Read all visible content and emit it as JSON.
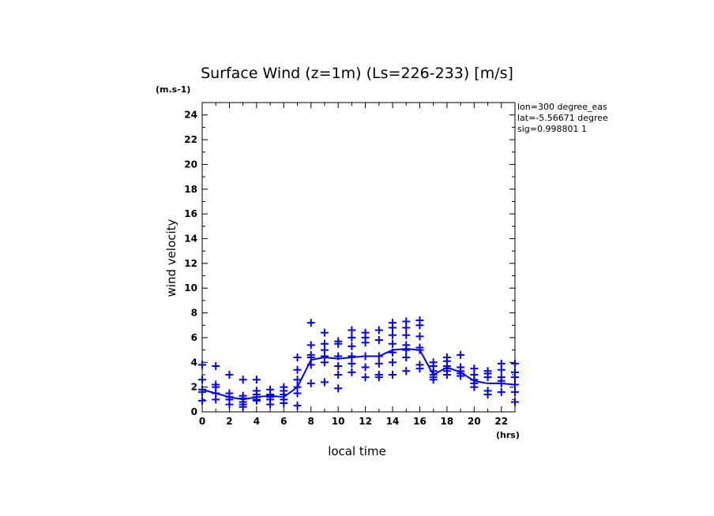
{
  "chart_data": {
    "type": "scatter",
    "title": "Surface Wind (z=1m) (Ls=226-233) [m/s]",
    "ylabel": "wind velocity",
    "yunit": "(m.s-1)",
    "xlabel": "local time",
    "xunit": "(hrs)",
    "xlim": [
      0,
      23
    ],
    "ylim": [
      0,
      25
    ],
    "xticks": [
      0,
      2,
      4,
      6,
      8,
      10,
      12,
      14,
      16,
      18,
      20,
      22
    ],
    "yticks": [
      0,
      2,
      4,
      6,
      8,
      10,
      12,
      14,
      16,
      18,
      20,
      22,
      24
    ],
    "info": [
      "lon=300 degree_eas",
      "lat=-5.56671 degree",
      "sig=0.998801 1"
    ],
    "color": "#0000ff",
    "mean_line": {
      "x": [
        0,
        1,
        2,
        3,
        4,
        5,
        6,
        7,
        8,
        9,
        10,
        11,
        12,
        13,
        14,
        15,
        16,
        17,
        18,
        19,
        20,
        21,
        22,
        23
      ],
      "y": [
        1.8,
        1.5,
        1.2,
        1.0,
        1.2,
        1.3,
        1.2,
        2.0,
        4.2,
        4.4,
        4.3,
        4.4,
        4.5,
        4.5,
        5.0,
        5.1,
        5.0,
        3.0,
        3.6,
        3.2,
        2.5,
        2.3,
        2.3,
        2.2
      ]
    },
    "points": {
      "x": [
        0,
        0,
        0,
        0,
        0,
        1,
        1,
        1,
        1,
        1,
        2,
        2,
        2,
        2,
        2,
        3,
        3,
        3,
        3,
        3,
        3,
        4,
        4,
        4,
        4,
        4,
        4,
        5,
        5,
        5,
        5,
        5,
        6,
        6,
        6,
        6,
        6,
        7,
        7,
        7,
        7,
        7,
        7,
        8,
        8,
        8,
        8,
        8,
        8,
        9,
        9,
        9,
        9,
        9,
        9,
        10,
        10,
        10,
        10,
        10,
        10,
        11,
        11,
        11,
        11,
        11,
        11,
        12,
        12,
        12,
        12,
        12,
        12,
        13,
        13,
        13,
        13,
        13,
        13,
        14,
        14,
        14,
        14,
        14,
        14,
        14,
        15,
        15,
        15,
        15,
        15,
        15,
        15,
        16,
        16,
        16,
        16,
        16,
        16,
        16,
        17,
        17,
        17,
        17,
        17,
        17,
        18,
        18,
        18,
        18,
        18,
        18,
        19,
        19,
        19,
        19,
        19,
        20,
        20,
        20,
        20,
        20,
        21,
        21,
        21,
        21,
        21,
        22,
        22,
        22,
        22,
        22,
        22,
        23,
        23,
        23,
        23,
        23,
        23
      ],
      "y": [
        3.8,
        2.6,
        1.8,
        1.6,
        0.9,
        3.7,
        2.2,
        2.0,
        1.5,
        1.0,
        3.0,
        1.5,
        1.2,
        1.0,
        0.6,
        2.6,
        1.3,
        1.1,
        0.8,
        0.6,
        0.4,
        2.6,
        1.7,
        1.4,
        1.2,
        1.0,
        0.9,
        1.8,
        1.4,
        1.2,
        1.0,
        0.6,
        2.0,
        1.7,
        1.4,
        1.0,
        0.7,
        4.4,
        3.4,
        2.6,
        2.0,
        1.5,
        0.5,
        7.2,
        5.4,
        4.6,
        4.4,
        3.8,
        2.3,
        6.4,
        5.5,
        5.0,
        4.5,
        4.0,
        2.4,
        5.7,
        5.5,
        4.5,
        3.7,
        3.0,
        1.9,
        6.6,
        6.0,
        5.3,
        4.5,
        3.9,
        3.2,
        6.4,
        6.0,
        5.6,
        4.5,
        3.6,
        2.8,
        6.6,
        5.8,
        4.5,
        3.9,
        3.0,
        2.8,
        7.2,
        6.8,
        6.2,
        5.5,
        4.8,
        4.0,
        3.0,
        7.3,
        6.8,
        6.2,
        5.4,
        5.0,
        4.4,
        3.3,
        7.4,
        7.0,
        6.1,
        5.2,
        5.0,
        3.8,
        3.5,
        4.0,
        3.7,
        3.3,
        3.0,
        2.8,
        2.6,
        4.4,
        4.1,
        3.7,
        3.5,
        3.3,
        3.0,
        4.6,
        3.6,
        3.3,
        3.1,
        2.9,
        3.5,
        3.0,
        2.6,
        2.3,
        2.0,
        3.3,
        3.1,
        2.8,
        1.7,
        1.4,
        3.9,
        3.4,
        2.8,
        2.5,
        2.3,
        1.6,
        3.9,
        3.2,
        2.8,
        2.2,
        1.6,
        0.8
      ]
    }
  }
}
